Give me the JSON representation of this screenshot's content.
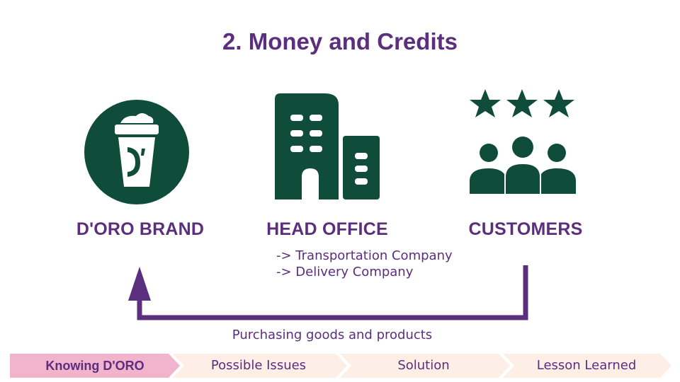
{
  "slide": {
    "title": "2. Money and Credits"
  },
  "nodes": [
    {
      "label": "D'ORO BRAND",
      "icon": "coffee-cup-logo-icon"
    },
    {
      "label": "HEAD OFFICE",
      "icon": "office-building-icon"
    },
    {
      "label": "CUSTOMERS",
      "icon": "customers-rating-icon"
    }
  ],
  "head_office_notes": [
    "-> Transportation Company",
    "-> Delivery Company"
  ],
  "flow": {
    "caption": "Purchasing goods and products",
    "from": "CUSTOMERS",
    "to": "D'ORO BRAND"
  },
  "nav": {
    "steps": [
      {
        "label": "Knowing D'ORO",
        "active": true
      },
      {
        "label": "Possible Issues",
        "active": false
      },
      {
        "label": "Solution",
        "active": false
      },
      {
        "label": "Lesson Learned",
        "active": false
      }
    ]
  },
  "colors": {
    "title": "#5b2e7e",
    "icon": "#0f4c3a",
    "arrow": "#5b2e7e",
    "nav_active": "#f2b3cc",
    "nav_inactive": "#fdeee6"
  }
}
